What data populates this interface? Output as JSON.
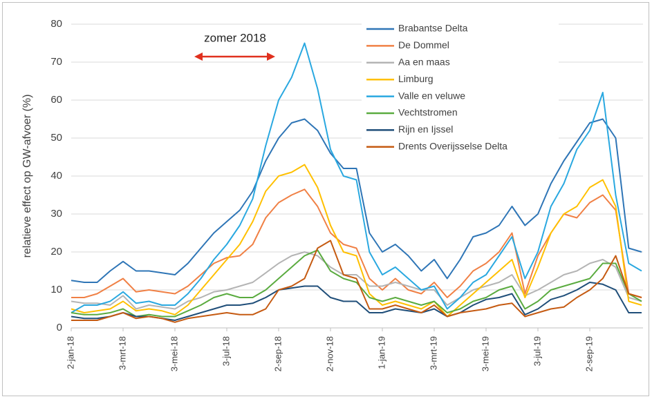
{
  "chart_data": {
    "type": "line",
    "y_label": "relatieve effect op GW-afvoer (%)",
    "annotation": "zomer 2018",
    "grid": true,
    "ylim": [
      0,
      80
    ],
    "yticks": [
      0,
      10,
      20,
      30,
      40,
      50,
      60,
      70,
      80
    ],
    "categories": [
      "2-jan-18",
      null,
      null,
      null,
      "3-mrt-18",
      null,
      null,
      null,
      "3-mei-18",
      null,
      null,
      null,
      "3-jul-18",
      null,
      null,
      null,
      "2-sep-18",
      null,
      null,
      null,
      "2-nov-18",
      null,
      null,
      null,
      "1-jan-19",
      null,
      null,
      null,
      "3-mrt-19",
      null,
      null,
      null,
      "3-mei-19",
      null,
      null,
      null,
      "3-jul-19",
      null,
      null,
      null,
      "2-sep-19",
      null,
      null,
      null,
      null
    ],
    "series": [
      {
        "name": "Brabantse Delta",
        "color": "#2e75b6",
        "values": [
          12.5,
          12,
          12,
          15,
          17.5,
          15,
          15,
          14.5,
          14,
          17,
          21,
          25,
          28,
          31,
          36,
          44,
          50,
          54,
          55,
          52,
          46,
          42,
          42,
          25,
          20,
          22,
          19,
          15,
          18,
          13,
          18,
          24,
          25,
          27,
          32,
          27,
          30,
          38,
          44,
          49,
          54,
          55,
          50,
          21,
          20
        ]
      },
      {
        "name": "De Dommel",
        "color": "#f08045",
        "values": [
          8,
          8,
          9,
          11,
          13,
          9.5,
          10,
          9.5,
          9,
          11,
          14,
          17,
          18.5,
          19,
          22,
          29,
          33,
          35,
          36.5,
          32,
          25,
          22,
          21,
          13,
          10,
          13,
          10,
          9,
          12,
          8,
          11,
          15,
          17,
          20,
          25,
          9,
          19,
          25,
          30,
          29,
          33,
          35,
          31,
          9,
          8
        ]
      },
      {
        "name": "Aa en maas",
        "color": "#b4b4b4",
        "values": [
          7,
          6.5,
          6.5,
          6,
          8.5,
          5,
          6,
          5.5,
          5,
          7,
          8,
          9.5,
          10,
          11,
          12,
          14.5,
          17,
          19,
          20,
          19,
          16,
          14,
          14,
          11,
          11,
          12,
          11,
          10,
          10,
          6,
          8,
          10,
          11,
          12,
          14,
          8.5,
          10,
          12,
          14,
          15,
          17,
          18,
          16,
          8,
          7
        ]
      },
      {
        "name": "Limburg",
        "color": "#ffc000",
        "values": [
          5,
          4,
          4.5,
          5,
          7,
          4.5,
          5,
          4.5,
          3.5,
          6,
          10,
          14,
          18,
          22,
          28,
          36,
          40,
          41,
          43,
          37,
          27,
          20,
          19,
          9,
          6,
          7,
          6,
          5,
          7,
          3,
          6,
          9,
          12,
          15,
          18,
          8,
          16,
          25,
          30,
          32,
          37,
          39,
          32,
          7,
          6
        ]
      },
      {
        "name": "Valle en veluwe",
        "color": "#29a8e0",
        "values": [
          4,
          6,
          6,
          7,
          9.5,
          6.5,
          7,
          6,
          6,
          9,
          13,
          18,
          22,
          27,
          34,
          48,
          60,
          66,
          75,
          63,
          47,
          40,
          39,
          20,
          14,
          16,
          13,
          10,
          11,
          5,
          8,
          12,
          14,
          19,
          24,
          13,
          20,
          32,
          38,
          47,
          52,
          62,
          35,
          17,
          15
        ]
      },
      {
        "name": "Vechtstromen",
        "color": "#5aab3f",
        "values": [
          4,
          3.5,
          3.5,
          4,
          5,
          3,
          3.5,
          3,
          3,
          4.5,
          6,
          8,
          9,
          8,
          8,
          10,
          13,
          16,
          19,
          20.5,
          15,
          13,
          12,
          8,
          7,
          8,
          7,
          6,
          7,
          4,
          5,
          7,
          8,
          10,
          11,
          5,
          7,
          10,
          11,
          12,
          13,
          17,
          17,
          9,
          7
        ]
      },
      {
        "name": "Rijn en Ijssel",
        "color": "#1f4e79",
        "values": [
          3,
          2.5,
          2.5,
          3,
          4,
          3,
          3,
          2.5,
          2,
          3,
          4,
          5,
          6,
          6,
          6.5,
          8,
          10,
          10.5,
          11,
          11,
          8,
          7,
          7,
          4,
          4,
          5,
          4.5,
          4,
          5,
          3,
          4,
          6,
          7.5,
          8,
          9,
          3.5,
          5,
          7.5,
          8.5,
          10,
          12,
          11.5,
          10,
          4,
          4
        ]
      },
      {
        "name": "Drents Overijsselse Delta",
        "color": "#c55a11",
        "values": [
          2,
          2,
          2,
          3,
          4,
          2.5,
          3,
          2.5,
          1.5,
          2.5,
          3,
          3.5,
          4,
          3.5,
          3.5,
          5,
          10,
          11,
          13,
          21,
          23,
          14,
          13,
          5,
          5,
          6,
          5,
          4,
          6,
          3,
          4,
          4.5,
          5,
          6,
          6.5,
          3,
          4,
          5,
          5.5,
          8,
          10,
          13,
          19,
          9,
          8
        ]
      }
    ]
  }
}
